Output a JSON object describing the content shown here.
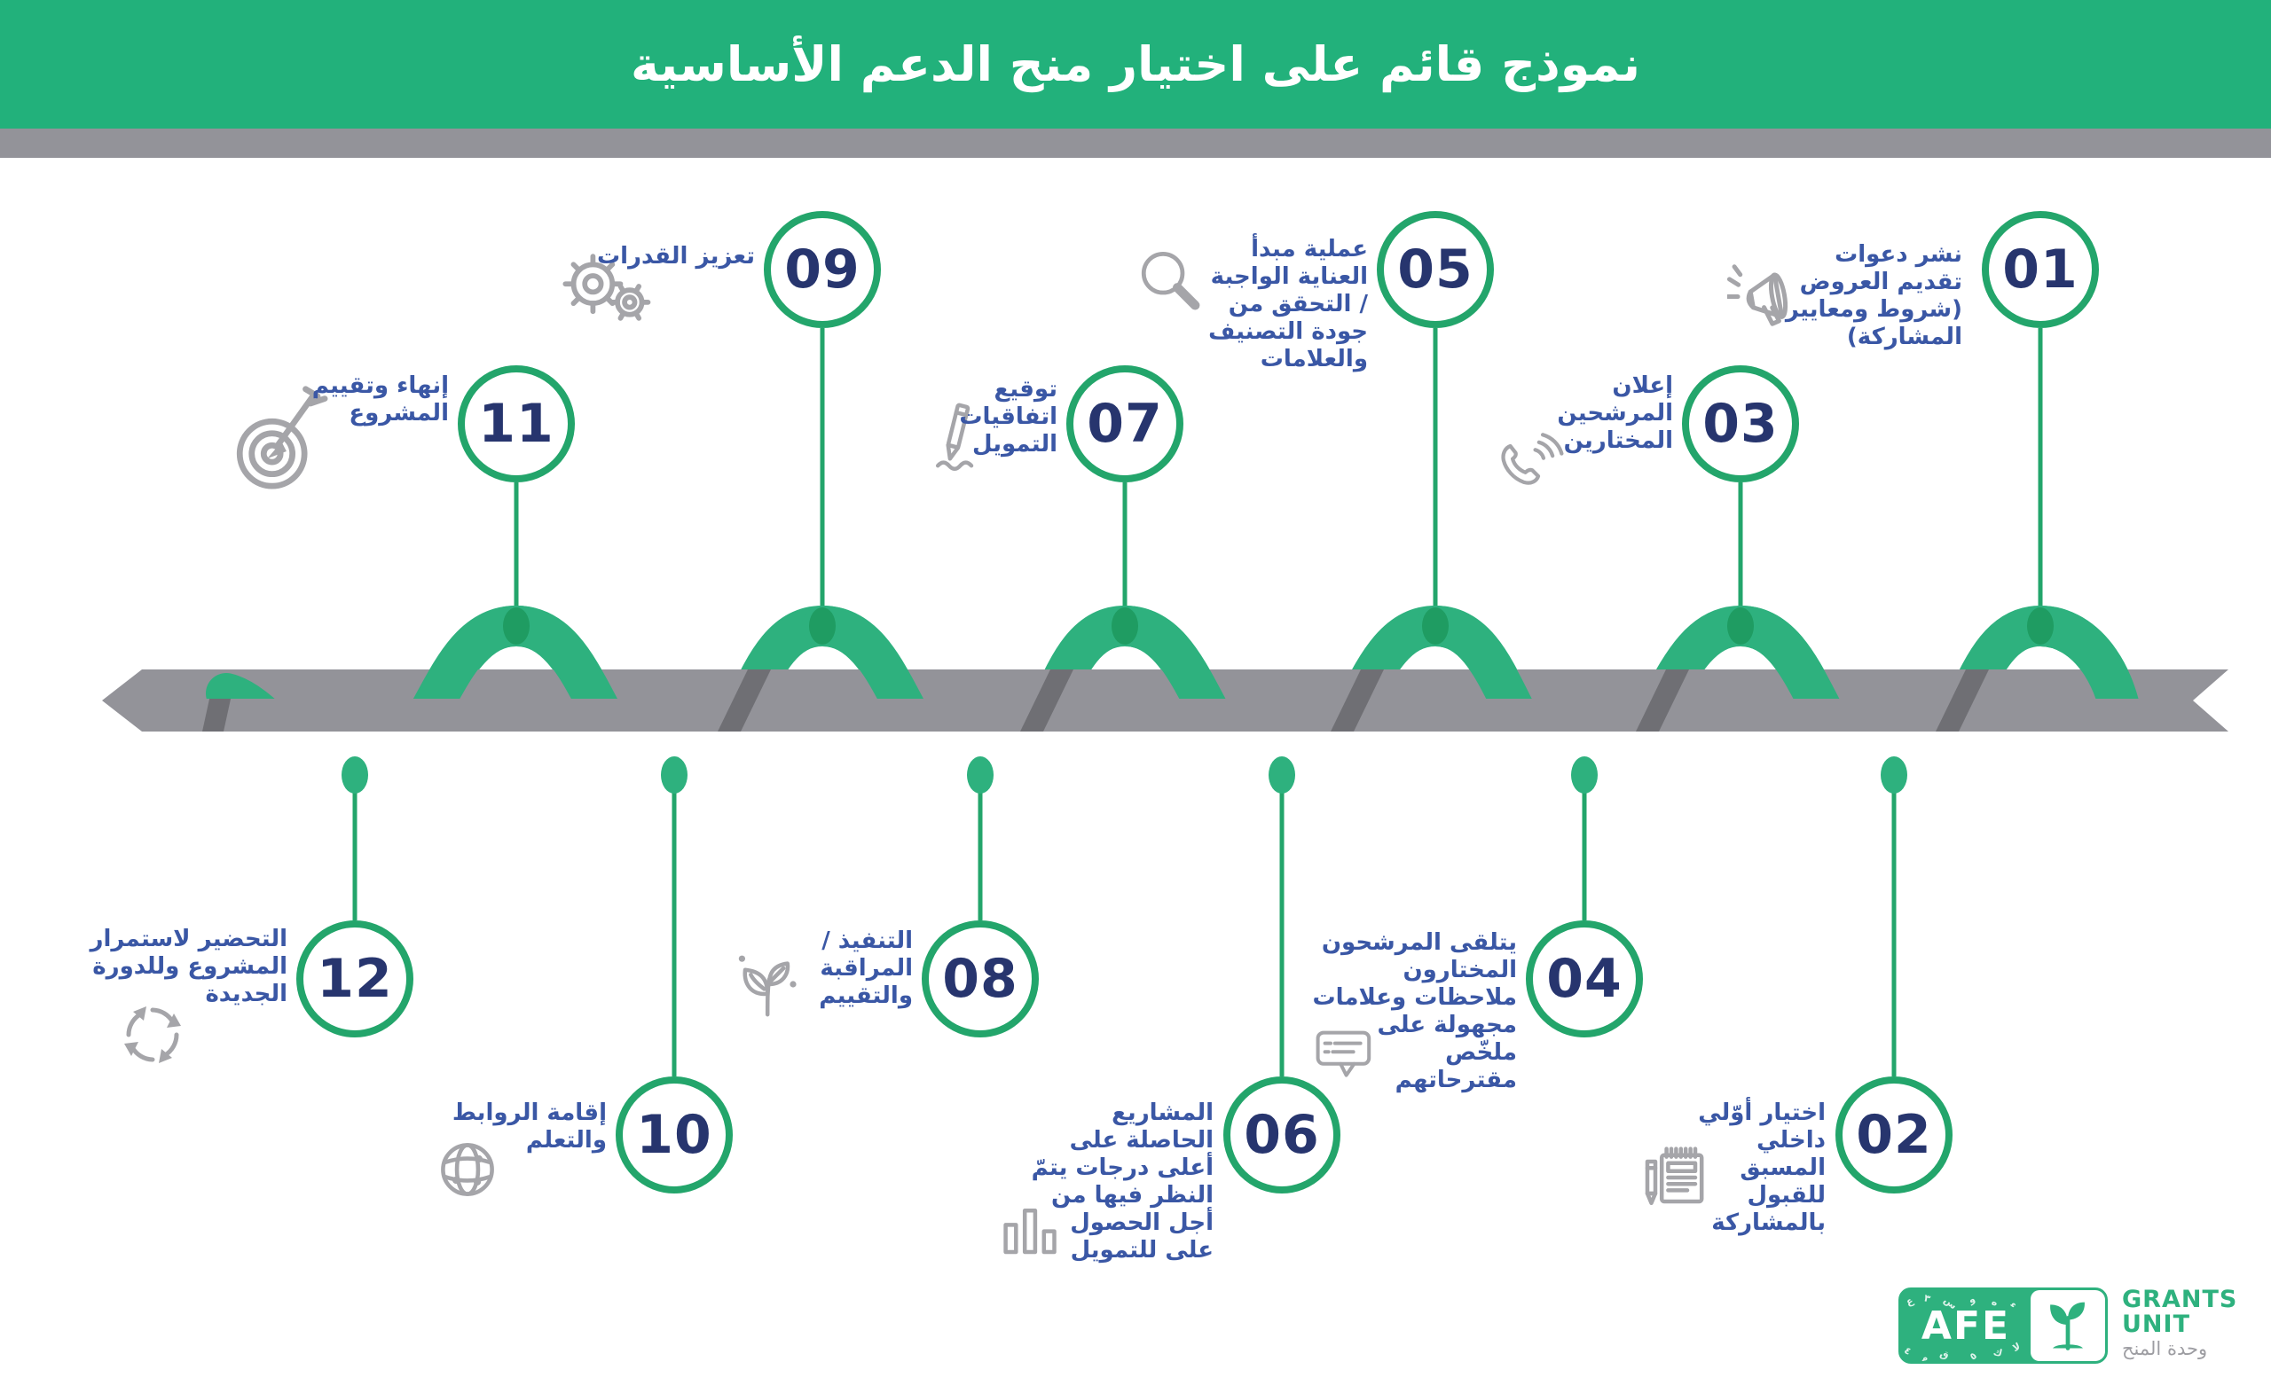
{
  "header": {
    "title": "نموذج قائم على اختيار منح الدعم الأساسية"
  },
  "steps": [
    {
      "num": "01",
      "label": "نشر دعوات\nتقديم العروض\n(شروط ومعايير\nالمشاركة)",
      "icon": "megaphone-icon"
    },
    {
      "num": "02",
      "label": "اختيار أوّلي\nداخلي\nالمسبق\nللقبول\nبالمشاركة",
      "icon": "notepad-pencil-icon"
    },
    {
      "num": "03",
      "label": "إعلان\nالمرشحين\nالمختارين",
      "icon": "phone-waves-icon"
    },
    {
      "num": "04",
      "label": "يتلقى المرشحون\nالمختارون\nملاحظات وعلامات\nمجهولة على\nملخّص\nمقترحاتهم",
      "icon": "speech-bubble-icon"
    },
    {
      "num": "05",
      "label": "عملية مبدأ\nالعناية الواجبة\n/ التحقق من\nجودة التصنيف\nوالعلامات",
      "icon": "magnifier-icon"
    },
    {
      "num": "06",
      "label": "المشاريع\nالحاصلة على\nأعلى درجات يتمّ\nالنظر فيها من\nأجل الحصول\nعلى للتمويل",
      "icon": "bar-chart-icon"
    },
    {
      "num": "07",
      "label": "توقيع\nاتفاقيات\nالتمويل",
      "icon": "pencil-icon"
    },
    {
      "num": "08",
      "label": "التنفيذ /\nالمراقبة\nوالتقييم",
      "icon": "plant-icon"
    },
    {
      "num": "09",
      "label": "تعزيز القدرات",
      "icon": "gears-icon"
    },
    {
      "num": "10",
      "label": "إقامة الروابط\nوالتعلم",
      "icon": "globe-icon"
    },
    {
      "num": "11",
      "label": "إنهاء وتقييم\nالمشروع",
      "icon": "target-arrow-icon"
    },
    {
      "num": "12",
      "label": "التحضير لاستمرار\nالمشروع وللدورة\nالجديدة",
      "icon": "recycle-arrows-icon"
    }
  ],
  "logo": {
    "afe": "AFE",
    "grants": "GRANTS",
    "unit": "UNIT",
    "unit_ar": "وحدة المنح",
    "scatter": [
      "ع",
      "٣",
      "س",
      "و",
      "ه",
      "ء",
      "٤",
      "م",
      "ق",
      "٥",
      "ك",
      "لا"
    ]
  },
  "colors": {
    "header_green": "#22B17B",
    "ribbon_light": "#2EB17E",
    "ribbon_dark": "#1F9C62",
    "line_green": "#23A56B",
    "bar_gray": "#939399",
    "shadow_gray": "#6F6F74",
    "navy": "#27356E",
    "label_blue": "#3A57A5",
    "icon_gray": "#A5A5A9",
    "logo_green": "#2EB17E"
  }
}
